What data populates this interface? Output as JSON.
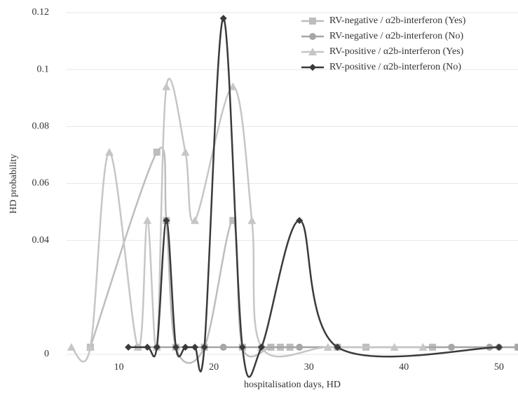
{
  "chart_data": {
    "type": "line",
    "smooth": true,
    "xlabel": "hospitalisation days, HD",
    "ylabel": "HD probability",
    "xlim": [
      4.5,
      52
    ],
    "ylim": [
      0,
      0.12
    ],
    "xticks": [
      10,
      20,
      30,
      40,
      50
    ],
    "yticks": [
      0,
      0.04,
      0.06,
      0.08,
      0.1,
      0.12
    ],
    "grid": true,
    "legend": "top-right",
    "series": [
      {
        "name": "RV-negative / α2b-interferon (Yes)",
        "color": "#bdbdbd",
        "marker": "square",
        "x": [
          7,
          14,
          15,
          16,
          19,
          22,
          23,
          26,
          27,
          28,
          33,
          36,
          43,
          52
        ],
        "values": [
          0.0025,
          0.071,
          0.047,
          0.0025,
          0.0025,
          0.047,
          0.0025,
          0.0025,
          0.0025,
          0.0025,
          0.0025,
          0.0025,
          0.0025,
          0.0025
        ]
      },
      {
        "name": "RV-negative / α2b-interferon (No)",
        "color": "#a6a6a6",
        "marker": "circle",
        "x": [
          12,
          14,
          21,
          25,
          29,
          33,
          45,
          49,
          50,
          52
        ],
        "values": [
          0.0025,
          0.0025,
          0.0025,
          0.0025,
          0.0025,
          0.0025,
          0.0025,
          0.0025,
          0.0025,
          0.0025
        ]
      },
      {
        "name": "RV-positive / α2b-interferon (Yes)",
        "color": "#c6c6c6",
        "marker": "triangle",
        "x": [
          5,
          7,
          9,
          12,
          13,
          14,
          15,
          17,
          18,
          22,
          24,
          25,
          32,
          39,
          42
        ],
        "values": [
          0.0025,
          0.0025,
          0.071,
          0.0025,
          0.047,
          0.0025,
          0.094,
          0.071,
          0.047,
          0.094,
          0.047,
          0.0025,
          0.0025,
          0.0025,
          0.0025
        ]
      },
      {
        "name": "RV-positive / α2b-interferon (No)",
        "color": "#3a3a3a",
        "marker": "diamond",
        "x": [
          11,
          13,
          14,
          15,
          16,
          17,
          18,
          19,
          21,
          23,
          25,
          29,
          33,
          50
        ],
        "values": [
          0.0025,
          0.0025,
          0.0025,
          0.047,
          0.0025,
          0.0025,
          0.0025,
          0.0025,
          0.118,
          0.0025,
          0.0025,
          0.047,
          0.0025,
          0.0025
        ]
      }
    ]
  }
}
